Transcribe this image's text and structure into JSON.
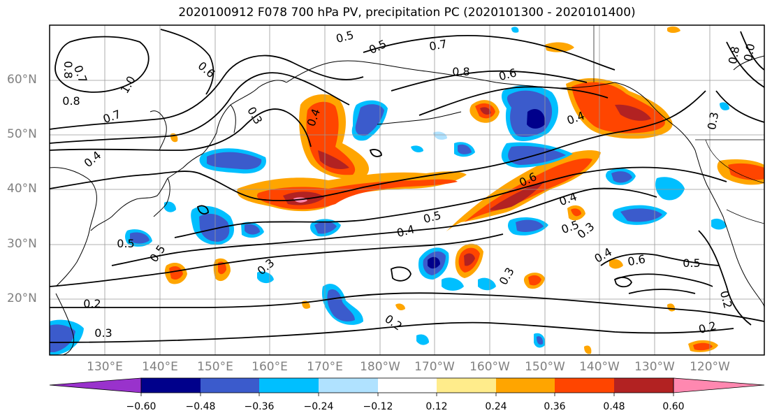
{
  "title": "2020100912 F078 700 hPa PV, precipitation PC (2020101300 - 2020101400)",
  "lat_labels": [
    "60°N",
    "50°N",
    "40°N",
    "30°N",
    "20°N"
  ],
  "lon_labels": [
    "130°E",
    "140°E",
    "150°E",
    "160°E",
    "170°E",
    "180°W",
    "170°W",
    "160°W",
    "150°W",
    "140°W",
    "130°W",
    "120°W"
  ],
  "colorbar": {
    "colors": [
      "#9932cc",
      "#00008b",
      "#3b5bcc",
      "#00bfff",
      "#b0e2ff",
      "#ffffff",
      "#ffec8b",
      "#ffa500",
      "#ff4500",
      "#b22222",
      "#ff88b0"
    ],
    "tick_labels": [
      "−0.60",
      "−0.48",
      "−0.36",
      "−0.24",
      "−0.12",
      "0.12",
      "0.24",
      "0.36",
      "0.48",
      "0.60"
    ]
  },
  "contour_labels": [
    "0.5",
    "0.5",
    "0.7",
    "0.8",
    "0.6",
    "0.8",
    "0.7",
    "1.0",
    "0.8",
    "0.6",
    "0.3",
    "0.4",
    "0.7",
    "0.4",
    "0.4",
    "0.6",
    "0.4",
    "0.5",
    "0.4",
    "0.5",
    "0.3",
    "0.5",
    "0.5",
    "0.3",
    "0.4",
    "0.6",
    "0.5",
    "0.3",
    "0.2",
    "0.3",
    "0.2",
    "0.2",
    "0.2",
    "0.3",
    "0.8",
    "0.0"
  ]
}
